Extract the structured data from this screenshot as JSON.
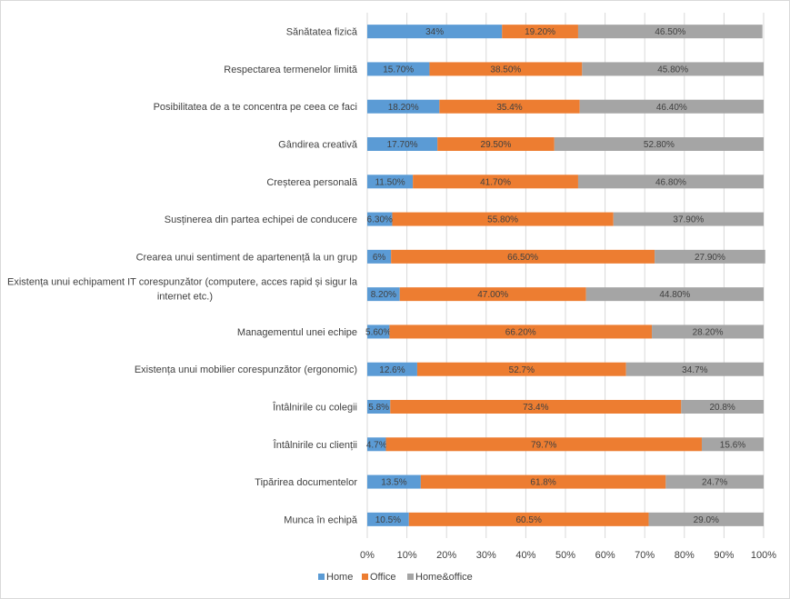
{
  "chart_data": {
    "type": "bar",
    "orientation": "horizontal-stacked-100",
    "xlim": [
      0,
      100
    ],
    "x_ticks": [
      "0%",
      "10%",
      "20%",
      "30%",
      "40%",
      "50%",
      "60%",
      "70%",
      "80%",
      "90%",
      "100%"
    ],
    "grid": "vertical",
    "legend_position": "bottom-left",
    "colors": {
      "Home": "#5b9bd5",
      "Office": "#ed7d31",
      "Home&office": "#a5a5a5"
    },
    "series": [
      {
        "name": "Home",
        "color": "#5b9bd5"
      },
      {
        "name": "Office",
        "color": "#ed7d31"
      },
      {
        "name": "Home&office",
        "color": "#a5a5a5"
      }
    ],
    "rows": [
      {
        "category": [
          "Sănătatea fizică"
        ],
        "values": [
          34,
          19.2,
          46.5
        ],
        "labels": [
          "34%",
          "19.20%",
          "46.50%"
        ]
      },
      {
        "category": [
          "Respectarea termenelor limită"
        ],
        "values": [
          15.7,
          38.5,
          45.8
        ],
        "labels": [
          "15.70%",
          "38.50%",
          "45.80%"
        ]
      },
      {
        "category": [
          "Posibilitatea de a te concentra pe ceea ce faci"
        ],
        "values": [
          18.2,
          35.4,
          46.4
        ],
        "labels": [
          "18.20%",
          "35.4%",
          "46.40%"
        ]
      },
      {
        "category": [
          "Gândirea creativă"
        ],
        "values": [
          17.7,
          29.5,
          52.8
        ],
        "labels": [
          "17.70%",
          "29.50%",
          "52.80%"
        ]
      },
      {
        "category": [
          "Creșterea personală"
        ],
        "values": [
          11.5,
          41.7,
          46.8
        ],
        "labels": [
          "11.50%",
          "41.70%",
          "46.80%"
        ]
      },
      {
        "category": [
          "Susținerea din partea echipei de conducere"
        ],
        "values": [
          6.3,
          55.8,
          37.9
        ],
        "labels": [
          "6.30%",
          "55.80%",
          "37.90%"
        ]
      },
      {
        "category": [
          "Crearea unui sentiment de apartenență la un grup"
        ],
        "values": [
          6,
          66.5,
          27.9
        ],
        "labels": [
          "6%",
          "66.50%",
          "27.90%"
        ]
      },
      {
        "category": [
          "Existența unui echipament IT corespunzător (computere, acces rapid și sigur la",
          "internet etc.)"
        ],
        "values": [
          8.2,
          47.0,
          44.8
        ],
        "labels": [
          "8.20%",
          "47.00%",
          "44.80%"
        ]
      },
      {
        "category": [
          "Managementul unei echipe"
        ],
        "values": [
          5.6,
          66.2,
          28.2
        ],
        "labels": [
          "5.60%",
          "66.20%",
          "28.20%"
        ]
      },
      {
        "category": [
          "Existența unui mobilier corespunzător (ergonomic)"
        ],
        "values": [
          12.6,
          52.7,
          34.7
        ],
        "labels": [
          "12.6%",
          "52.7%",
          "34.7%"
        ]
      },
      {
        "category": [
          "Întâlnirile cu colegii"
        ],
        "values": [
          5.8,
          73.4,
          20.8
        ],
        "labels": [
          "5.8%",
          "73.4%",
          "20.8%"
        ]
      },
      {
        "category": [
          "Întâlnirile cu clienții"
        ],
        "values": [
          4.7,
          79.7,
          15.6
        ],
        "labels": [
          "4.7%",
          "79.7%",
          "15.6%"
        ]
      },
      {
        "category": [
          "Tipărirea documentelor"
        ],
        "values": [
          13.5,
          61.8,
          24.7
        ],
        "labels": [
          "13.5%",
          "61.8%",
          "24.7%"
        ]
      },
      {
        "category": [
          "Munca în echipă"
        ],
        "values": [
          10.5,
          60.5,
          29.0
        ],
        "labels": [
          "10.5%",
          "60.5%",
          "29.0%"
        ]
      }
    ]
  }
}
